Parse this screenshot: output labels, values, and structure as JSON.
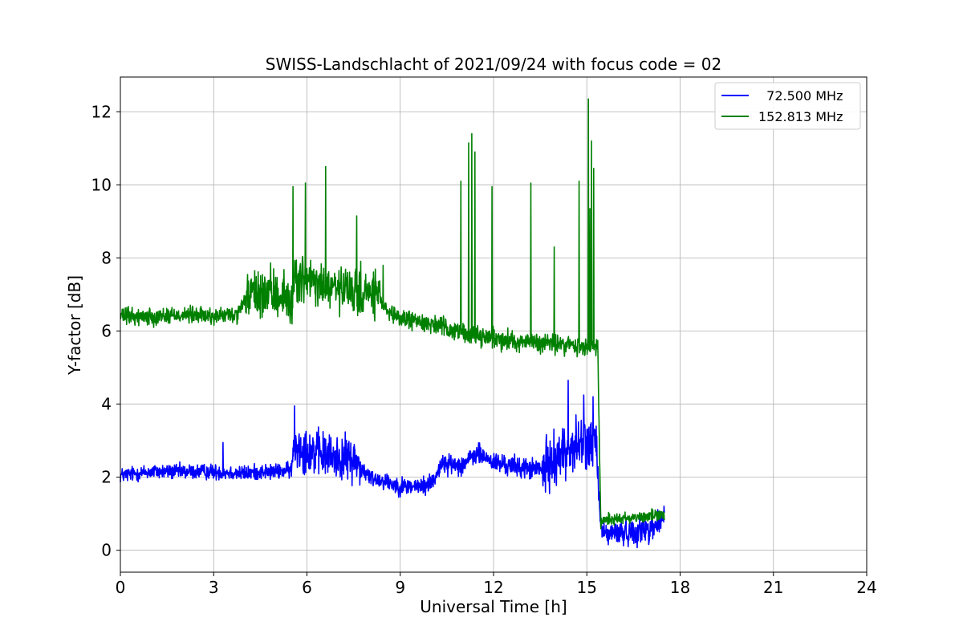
{
  "chart_data": {
    "type": "line",
    "title": "SWISS-Landschlacht of 2021/09/24 with focus code = 02",
    "xlabel": "Universal Time [h]",
    "ylabel": "Y-factor [dB]",
    "xlim": [
      0,
      24
    ],
    "ylim": [
      -0.6,
      12.95
    ],
    "xticks": [
      0,
      3,
      6,
      9,
      12,
      15,
      18,
      21,
      24
    ],
    "yticks": [
      0,
      2,
      4,
      6,
      8,
      10,
      12
    ],
    "grid": true,
    "legend_position": "top-right",
    "series": [
      {
        "name": "  72.500 MHz",
        "color": "#0000ff",
        "baseline": [
          [
            0,
            2.05
          ],
          [
            0.5,
            2.1
          ],
          [
            1,
            2.15
          ],
          [
            2,
            2.15
          ],
          [
            3,
            2.15
          ],
          [
            4,
            2.1
          ],
          [
            4.5,
            2.15
          ],
          [
            5,
            2.15
          ],
          [
            5.5,
            2.2
          ],
          [
            5.6,
            2.9
          ],
          [
            6.2,
            2.7
          ],
          [
            6.8,
            2.55
          ],
          [
            7.5,
            2.5
          ],
          [
            7.7,
            2.3
          ],
          [
            8,
            2.0
          ],
          [
            8.5,
            1.9
          ],
          [
            9,
            1.75
          ],
          [
            9.8,
            1.75
          ],
          [
            10.1,
            1.95
          ],
          [
            10.3,
            2.35
          ],
          [
            11,
            2.35
          ],
          [
            11.5,
            2.65
          ],
          [
            12,
            2.4
          ],
          [
            13,
            2.25
          ],
          [
            13.6,
            2.2
          ],
          [
            14,
            2.55
          ],
          [
            14.5,
            2.8
          ],
          [
            15,
            2.95
          ],
          [
            15.3,
            2.9
          ],
          [
            15.45,
            0.6
          ],
          [
            15.6,
            0.45
          ],
          [
            16.5,
            0.5
          ],
          [
            17,
            0.6
          ],
          [
            17.3,
            0.75
          ],
          [
            17.5,
            1.0
          ]
        ],
        "noise": [
          [
            0,
            0.18
          ],
          [
            5.5,
            0.18
          ],
          [
            5.6,
            0.55
          ],
          [
            7.7,
            0.5
          ],
          [
            7.8,
            0.2
          ],
          [
            13.5,
            0.25
          ],
          [
            13.6,
            0.6
          ],
          [
            15.4,
            0.6
          ],
          [
            15.45,
            0.25
          ],
          [
            17.5,
            0.35
          ]
        ],
        "spikes": [
          [
            3.3,
            2.95
          ],
          [
            5.6,
            3.95
          ],
          [
            14.4,
            4.65
          ],
          [
            14.9,
            4.25
          ],
          [
            15.2,
            4.2
          ]
        ]
      },
      {
        "name": "152.813 MHz",
        "color": "#008000",
        "baseline": [
          [
            0,
            6.4
          ],
          [
            1,
            6.4
          ],
          [
            2,
            6.45
          ],
          [
            3,
            6.4
          ],
          [
            3.8,
            6.45
          ],
          [
            4.1,
            7.0
          ],
          [
            5.3,
            7.0
          ],
          [
            5.4,
            6.75
          ],
          [
            5.5,
            6.65
          ],
          [
            5.6,
            7.5
          ],
          [
            6.5,
            7.2
          ],
          [
            7.5,
            7.05
          ],
          [
            8.3,
            7.0
          ],
          [
            8.6,
            6.45
          ],
          [
            9,
            6.35
          ],
          [
            10,
            6.2
          ],
          [
            11,
            5.95
          ],
          [
            12,
            5.8
          ],
          [
            13,
            5.7
          ],
          [
            14,
            5.65
          ],
          [
            15,
            5.55
          ],
          [
            15.35,
            5.6
          ],
          [
            15.45,
            0.75
          ],
          [
            15.6,
            0.85
          ],
          [
            16.5,
            0.9
          ],
          [
            17,
            0.95
          ],
          [
            17.5,
            0.95
          ]
        ],
        "noise": [
          [
            0,
            0.2
          ],
          [
            4.0,
            0.2
          ],
          [
            4.1,
            0.55
          ],
          [
            8.3,
            0.55
          ],
          [
            8.4,
            0.2
          ],
          [
            15.35,
            0.25
          ],
          [
            15.45,
            0.15
          ],
          [
            17.5,
            0.15
          ]
        ],
        "spikes": [
          [
            5.55,
            9.95
          ],
          [
            5.95,
            10.05
          ],
          [
            6.6,
            10.5
          ],
          [
            7.6,
            9.15
          ],
          [
            8.45,
            7.8
          ],
          [
            10.95,
            10.1
          ],
          [
            11.2,
            11.15
          ],
          [
            11.3,
            11.4
          ],
          [
            11.4,
            10.9
          ],
          [
            11.95,
            9.95
          ],
          [
            13.2,
            10.05
          ],
          [
            13.95,
            8.3
          ],
          [
            14.75,
            10.1
          ],
          [
            15.05,
            12.35
          ],
          [
            15.1,
            9.35
          ],
          [
            15.15,
            11.2
          ],
          [
            15.22,
            10.45
          ]
        ]
      }
    ]
  }
}
